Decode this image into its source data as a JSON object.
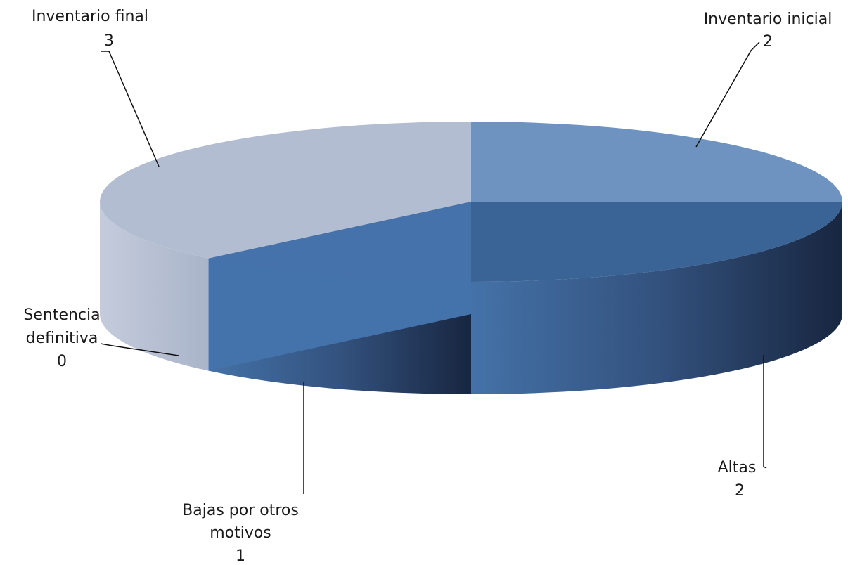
{
  "chart_data": {
    "type": "pie",
    "style": "3d",
    "title": "",
    "categories": [
      "Inventario inicial",
      "Altas",
      "Bajas por otros motivos",
      "Sentencia definitiva",
      "Inventario final"
    ],
    "values": [
      2,
      2,
      1,
      0,
      3
    ],
    "colors": [
      "#6e93c0",
      "#3b6496",
      "#4572aa",
      "#4a79b3",
      "#b3bdd1"
    ],
    "labels": [
      {
        "line1": "Inventario inicial",
        "line2": "",
        "value": "2"
      },
      {
        "line1": "Altas",
        "line2": "",
        "value": "2"
      },
      {
        "line1": "Bajas por otros",
        "line2": "motivos",
        "value": "1"
      },
      {
        "line1": "Sentencia",
        "line2": "definitiva",
        "value": "0"
      },
      {
        "line1": "Inventario final",
        "line2": "",
        "value": "3"
      }
    ],
    "legend": "none"
  }
}
